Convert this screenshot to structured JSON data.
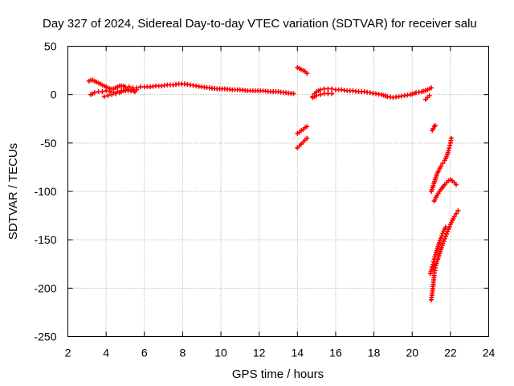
{
  "chart_data": {
    "type": "scatter",
    "title": "Day 327 of 2024, Sidereal Day-to-day VTEC variation (SDTVAR) for receiver salu",
    "xlabel": "GPS time / hours",
    "ylabel": "SDTVAR / TECUs",
    "xlim": [
      2,
      24
    ],
    "ylim": [
      -250,
      50
    ],
    "xticks": [
      2,
      4,
      6,
      8,
      10,
      12,
      14,
      16,
      18,
      20,
      22,
      24
    ],
    "yticks": [
      50,
      0,
      -50,
      -100,
      -150,
      -200,
      -250
    ],
    "grid": true,
    "marker": "+",
    "series": [
      {
        "name": "main-track-1",
        "color": "#ff0000",
        "points": [
          [
            3.1,
            14
          ],
          [
            3.2,
            15
          ],
          [
            3.3,
            15
          ],
          [
            3.4,
            14
          ],
          [
            3.5,
            13
          ],
          [
            3.6,
            12
          ],
          [
            3.7,
            11
          ],
          [
            3.8,
            10
          ],
          [
            3.9,
            9
          ],
          [
            4.0,
            8
          ],
          [
            4.1,
            7
          ],
          [
            4.2,
            6
          ],
          [
            4.3,
            6
          ],
          [
            4.4,
            6
          ],
          [
            4.5,
            7
          ],
          [
            4.6,
            8
          ],
          [
            4.7,
            9
          ],
          [
            4.8,
            9
          ],
          [
            4.9,
            9
          ],
          [
            5.0,
            8
          ],
          [
            5.2,
            8
          ],
          [
            5.4,
            7
          ],
          [
            5.6,
            7
          ],
          [
            5.8,
            8
          ],
          [
            6.0,
            8
          ],
          [
            6.3,
            8
          ],
          [
            6.6,
            9
          ],
          [
            6.9,
            9
          ],
          [
            7.2,
            10
          ],
          [
            7.5,
            10
          ],
          [
            7.8,
            11
          ],
          [
            8.1,
            11
          ],
          [
            8.4,
            10
          ],
          [
            8.7,
            9
          ],
          [
            9.0,
            8
          ],
          [
            9.4,
            7
          ],
          [
            9.8,
            6
          ],
          [
            10.2,
            6
          ],
          [
            10.6,
            5
          ],
          [
            11.0,
            5
          ],
          [
            11.4,
            4
          ],
          [
            11.8,
            4
          ],
          [
            12.2,
            4
          ],
          [
            12.6,
            3
          ],
          [
            13.0,
            3
          ],
          [
            13.4,
            2
          ],
          [
            13.8,
            1
          ]
        ]
      },
      {
        "name": "main-track-2",
        "color": "#ff0000",
        "points": [
          [
            3.2,
            0
          ],
          [
            3.4,
            2
          ],
          [
            3.6,
            3
          ],
          [
            3.8,
            3
          ],
          [
            4.0,
            4
          ],
          [
            4.2,
            3
          ],
          [
            4.4,
            2
          ],
          [
            4.6,
            3
          ],
          [
            4.8,
            4
          ],
          [
            5.0,
            4
          ],
          [
            5.3,
            4
          ],
          [
            5.6,
            5
          ]
        ]
      },
      {
        "name": "main-track-3",
        "color": "#ff0000",
        "points": [
          [
            3.9,
            -2
          ],
          [
            4.1,
            -1
          ],
          [
            4.3,
            0
          ],
          [
            4.5,
            1
          ],
          [
            4.7,
            2
          ],
          [
            4.9,
            4
          ],
          [
            5.1,
            6
          ],
          [
            5.3,
            5
          ],
          [
            5.5,
            3
          ]
        ]
      },
      {
        "name": "segment-14h-upper",
        "color": "#ff0000",
        "points": [
          [
            14.0,
            28
          ],
          [
            14.1,
            27
          ],
          [
            14.2,
            26
          ],
          [
            14.3,
            25
          ],
          [
            14.4,
            24
          ],
          [
            14.5,
            22
          ]
        ]
      },
      {
        "name": "segment-14h-mid",
        "color": "#ff0000",
        "points": [
          [
            14.0,
            -40
          ],
          [
            14.1,
            -39
          ],
          [
            14.2,
            -37
          ],
          [
            14.3,
            -36
          ],
          [
            14.4,
            -34
          ],
          [
            14.5,
            -33
          ]
        ]
      },
      {
        "name": "segment-14h-low",
        "color": "#ff0000",
        "points": [
          [
            14.0,
            -55
          ],
          [
            14.1,
            -53
          ],
          [
            14.2,
            -51
          ],
          [
            14.3,
            -49
          ],
          [
            14.4,
            -47
          ],
          [
            14.5,
            -45
          ]
        ]
      },
      {
        "name": "afternoon-track",
        "color": "#ff0000",
        "points": [
          [
            14.8,
            -2
          ],
          [
            14.9,
            1
          ],
          [
            15.0,
            3
          ],
          [
            15.2,
            5
          ],
          [
            15.4,
            6
          ],
          [
            15.6,
            6
          ],
          [
            15.8,
            6
          ],
          [
            16.0,
            5
          ],
          [
            16.3,
            5
          ],
          [
            16.6,
            4
          ],
          [
            16.9,
            4
          ],
          [
            17.2,
            3
          ],
          [
            17.5,
            3
          ],
          [
            17.8,
            2
          ],
          [
            18.1,
            1
          ],
          [
            18.4,
            0
          ],
          [
            18.7,
            -2
          ],
          [
            19.0,
            -3
          ],
          [
            19.3,
            -2
          ],
          [
            19.6,
            -1
          ],
          [
            19.9,
            0
          ],
          [
            20.2,
            2
          ],
          [
            20.5,
            3
          ],
          [
            20.8,
            5
          ],
          [
            21.0,
            7
          ]
        ]
      },
      {
        "name": "afternoon-track-low",
        "color": "#ff0000",
        "points": [
          [
            14.8,
            -3
          ],
          [
            15.0,
            -1
          ],
          [
            15.2,
            0
          ],
          [
            15.4,
            1
          ],
          [
            15.6,
            1
          ],
          [
            15.8,
            1
          ]
        ]
      },
      {
        "name": "late-short",
        "color": "#ff0000",
        "points": [
          [
            20.7,
            -5
          ],
          [
            20.8,
            -3
          ],
          [
            20.9,
            -1
          ]
        ]
      },
      {
        "name": "late-drop-1",
        "color": "#ff0000",
        "points": [
          [
            21.05,
            -37
          ],
          [
            21.1,
            -35
          ],
          [
            21.15,
            -33
          ],
          [
            21.2,
            -32
          ]
        ]
      },
      {
        "name": "late-drop-2",
        "color": "#ff0000",
        "points": [
          [
            21.0,
            -100
          ],
          [
            21.1,
            -94
          ],
          [
            21.2,
            -88
          ],
          [
            21.3,
            -82
          ],
          [
            21.4,
            -78
          ],
          [
            21.5,
            -74
          ],
          [
            21.6,
            -71
          ],
          [
            21.7,
            -68
          ],
          [
            21.8,
            -64
          ],
          [
            21.9,
            -58
          ],
          [
            22.0,
            -50
          ],
          [
            22.05,
            -45
          ]
        ]
      },
      {
        "name": "late-drop-3",
        "color": "#ff0000",
        "points": [
          [
            21.15,
            -110
          ],
          [
            21.3,
            -104
          ],
          [
            21.5,
            -98
          ],
          [
            21.7,
            -93
          ],
          [
            21.9,
            -89
          ],
          [
            22.0,
            -88
          ],
          [
            22.1,
            -89
          ],
          [
            22.2,
            -91
          ],
          [
            22.3,
            -93
          ]
        ]
      },
      {
        "name": "late-drop-4",
        "color": "#ff0000",
        "points": [
          [
            21.0,
            -212
          ],
          [
            21.05,
            -205
          ],
          [
            21.1,
            -196
          ],
          [
            21.15,
            -187
          ],
          [
            21.2,
            -179
          ],
          [
            21.3,
            -172
          ],
          [
            21.4,
            -166
          ],
          [
            21.5,
            -160
          ],
          [
            21.6,
            -154
          ],
          [
            21.7,
            -149
          ],
          [
            21.8,
            -144
          ],
          [
            21.9,
            -139
          ],
          [
            22.0,
            -134
          ],
          [
            22.1,
            -130
          ],
          [
            22.2,
            -126
          ],
          [
            22.3,
            -123
          ],
          [
            22.4,
            -120
          ]
        ]
      },
      {
        "name": "late-drop-5",
        "color": "#ff0000",
        "points": [
          [
            20.95,
            -185
          ],
          [
            21.05,
            -178
          ],
          [
            21.15,
            -170
          ],
          [
            21.25,
            -163
          ],
          [
            21.35,
            -157
          ],
          [
            21.45,
            -151
          ],
          [
            21.55,
            -146
          ],
          [
            21.65,
            -141
          ],
          [
            21.75,
            -137
          ]
        ]
      }
    ]
  }
}
